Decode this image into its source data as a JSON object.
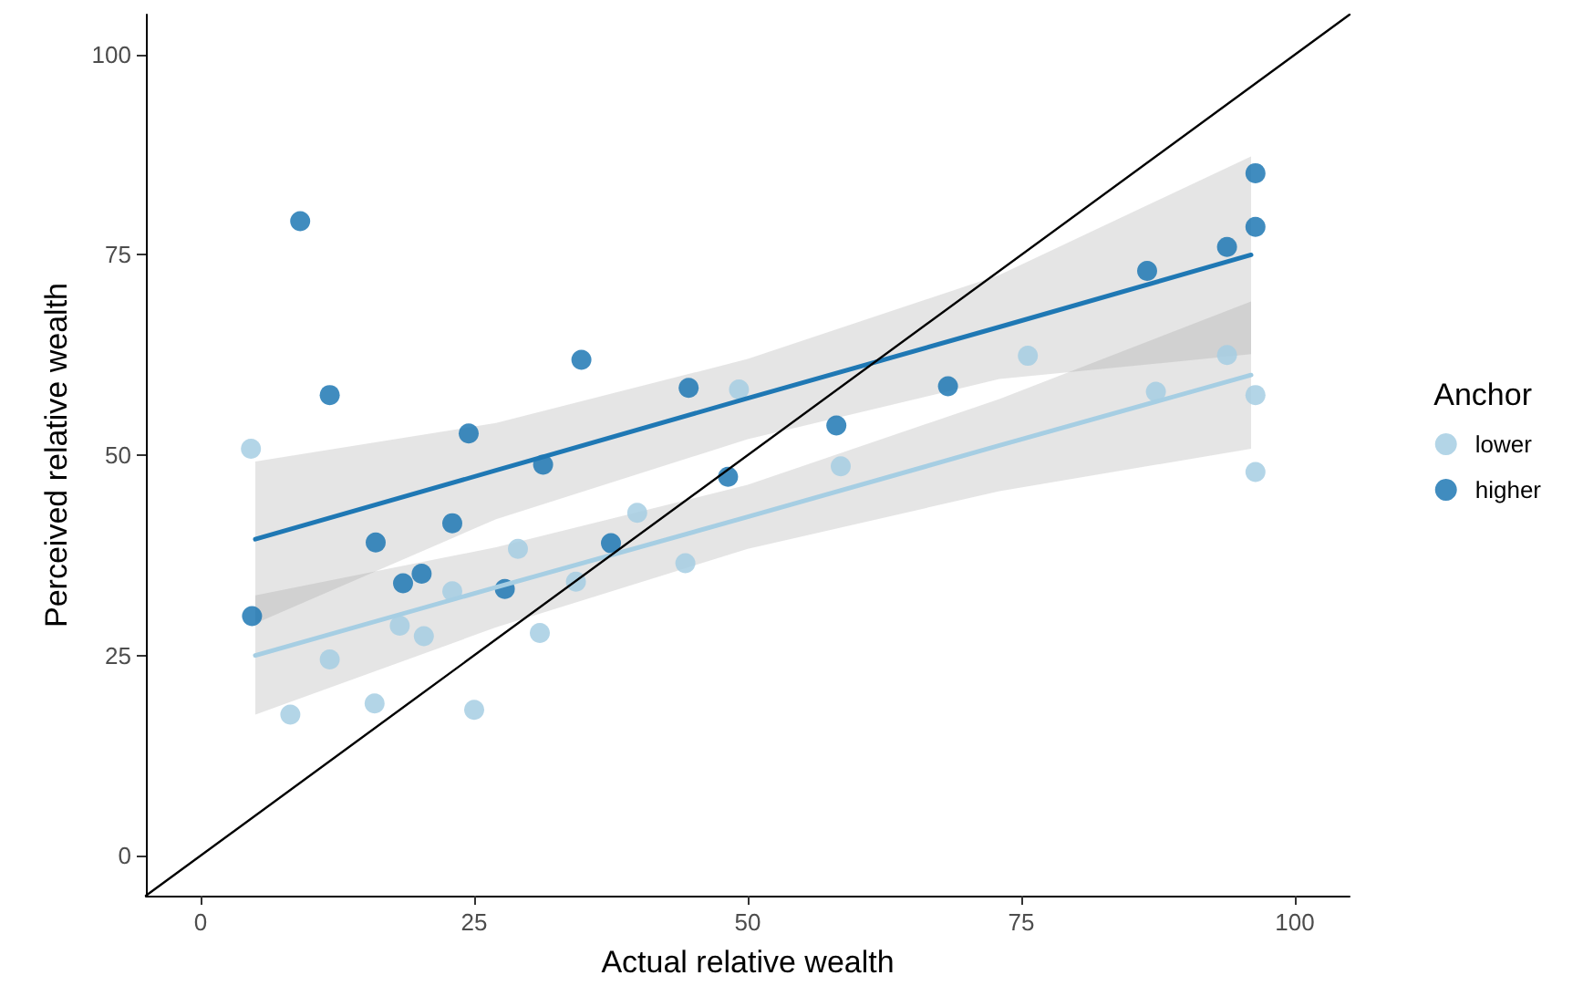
{
  "chart_data": {
    "type": "scatter",
    "xlabel": "Actual relative wealth",
    "ylabel": "Perceived relative wealth",
    "legend_title": "Anchor",
    "legend": "right",
    "grid": false,
    "marker": "circle",
    "xlim": [
      -5,
      105
    ],
    "ylim": [
      -5,
      105
    ],
    "xticks": [
      0,
      25,
      50,
      75,
      100
    ],
    "yticks": [
      0,
      25,
      50,
      75,
      100
    ],
    "series": [
      {
        "name": "lower",
        "color": "#a6cee3",
        "x": [
          4.6,
          11.8,
          8.2,
          15.9,
          18.2,
          20.4,
          23,
          25,
          29,
          31,
          34.3,
          39.9,
          44.3,
          49.2,
          58.5,
          75.6,
          87.3,
          93.8,
          96.4,
          96.4
        ],
        "values": [
          50.8,
          24.5,
          17.6,
          19,
          28.7,
          27.4,
          33,
          18.2,
          38.3,
          27.8,
          34.2,
          42.8,
          36.5,
          58.2,
          48.6,
          62.4,
          57.9,
          62.5,
          57.5,
          47.9
        ]
      },
      {
        "name": "higher",
        "color": "#1f78b4",
        "x": [
          9.1,
          11.8,
          4.7,
          16,
          18.5,
          20.2,
          24.5,
          23,
          27.8,
          31.3,
          34.8,
          37.5,
          44.6,
          48.2,
          58.1,
          68.3,
          86.5,
          93.8,
          96.4,
          96.4
        ],
        "values": [
          79.2,
          57.5,
          29.9,
          39.1,
          34,
          35.2,
          52.7,
          41.5,
          33.3,
          48.8,
          61.9,
          39,
          58.4,
          47.3,
          53.7,
          58.6,
          73,
          76,
          78.5,
          85.2
        ]
      },
      {
        "type": "line",
        "marker": "none",
        "color": "#a6cee3",
        "x": [
          5,
          27,
          50,
          73,
          96
        ],
        "values": [
          25,
          33.5,
          42.3,
          51.2,
          60
        ],
        "lower": [
          17.6,
          28.5,
          38.3,
          45.5,
          50.8
        ],
        "upper": [
          32.5,
          38.5,
          46.3,
          57,
          69.2
        ]
      },
      {
        "type": "line",
        "marker": "none",
        "color": "#1f78b4",
        "x": [
          5,
          27,
          50,
          73,
          96
        ],
        "values": [
          39.5,
          48.1,
          57.1,
          66,
          75
        ],
        "lower": [
          29,
          42,
          52,
          59.5,
          62.6
        ],
        "upper": [
          49.2,
          54,
          62,
          72.5,
          87.3
        ]
      },
      {
        "type": "line",
        "marker": "none",
        "color": "#000000",
        "x": [
          -5,
          105
        ],
        "values": [
          -5,
          105
        ]
      }
    ]
  }
}
